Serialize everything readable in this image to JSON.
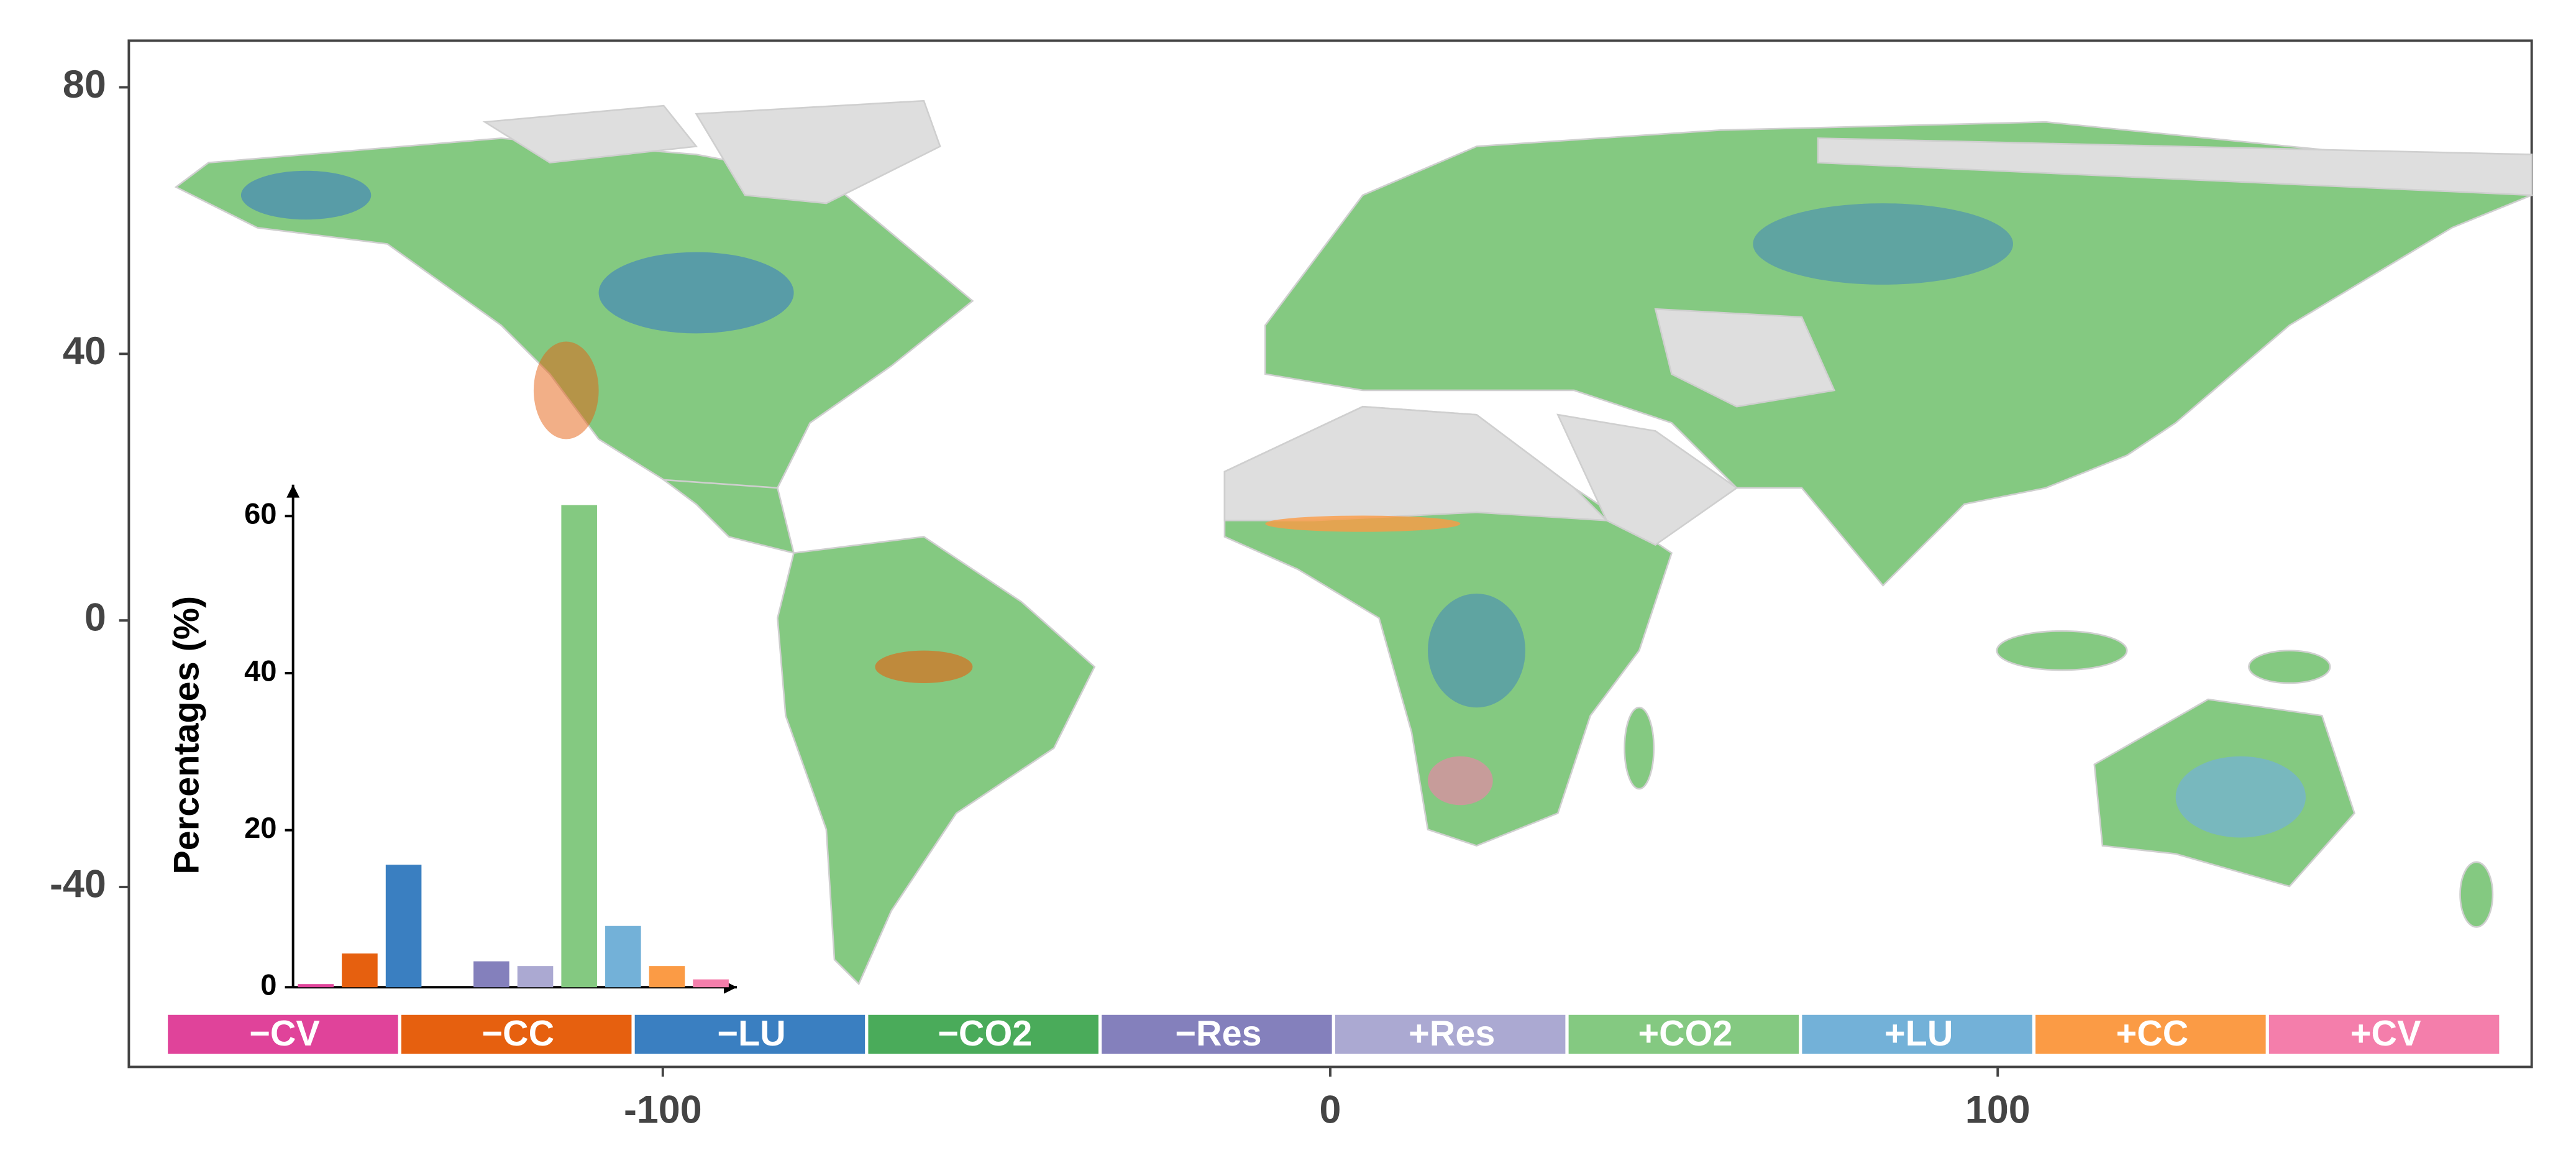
{
  "chart_data": [
    {
      "type": "map",
      "xlim": [
        -180,
        180
      ],
      "ylim": [
        -67,
        87
      ],
      "xticks": [
        -100,
        0,
        100
      ],
      "yticks": [
        80,
        40,
        0,
        -40
      ]
    },
    {
      "type": "bar",
      "ylabel": "Percentages (%)",
      "categories": [
        "−CV",
        "−CC",
        "−LU",
        "−CO2",
        "−Res",
        "+Res",
        "+CO2",
        "+LU",
        "+CC",
        "+CV"
      ],
      "values": [
        0.4,
        4.3,
        15.6,
        0,
        3.3,
        2.7,
        61.4,
        7.8,
        2.7,
        1.0
      ],
      "colors": [
        "#e0439a",
        "#e6600f",
        "#3a7fc1",
        "#4aab5a",
        "#8480bc",
        "#aba9d2",
        "#84c981",
        "#73b1d8",
        "#fb9b45",
        "#f47eab"
      ],
      "ylim": [
        0,
        64
      ],
      "yticks": [
        0,
        20,
        40,
        60
      ]
    }
  ]
}
